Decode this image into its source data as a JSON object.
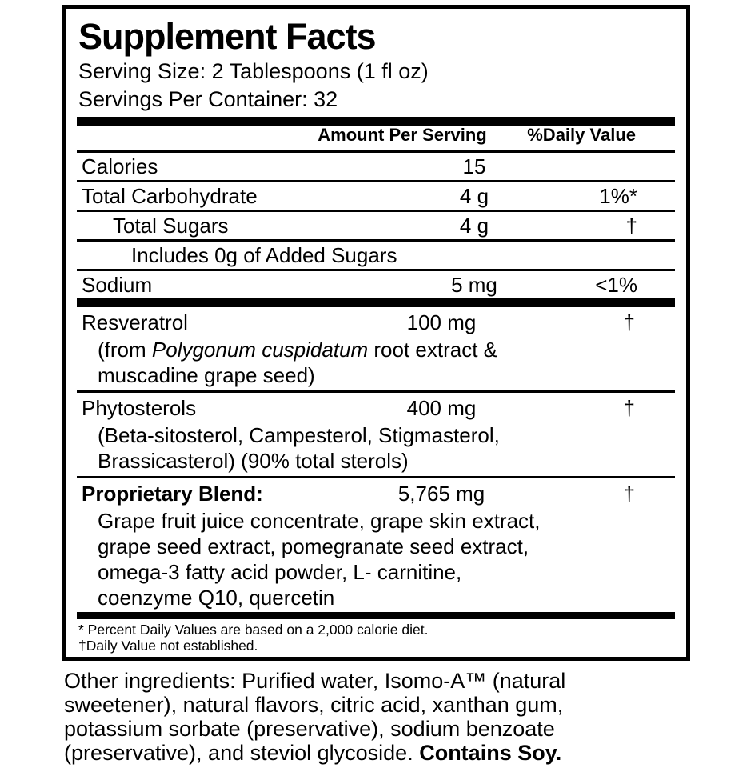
{
  "colors": {
    "text": "#000000",
    "background": "#ffffff"
  },
  "panel": {
    "title": "Supplement Facts",
    "serving_size": "Serving Size: 2 Tablespoons (1 fl oz)",
    "servings_per_container": "Servings Per Container: 32",
    "header": {
      "amount": "Amount Per Serving",
      "daily_value": "%Daily Value"
    },
    "nutrients": [
      {
        "name": "Calories",
        "amount": "15",
        "dv": ""
      },
      {
        "name": "Total Carbohydrate",
        "amount": "4 g",
        "dv": "1%*"
      },
      {
        "name": "Total Sugars",
        "amount": "4 g",
        "dv": "†"
      },
      {
        "name": "Includes 0g of Added Sugars",
        "amount": "",
        "dv": ""
      },
      {
        "name": "Sodium",
        "amount": "5 mg",
        "dv": "<1%"
      }
    ],
    "ingredients": [
      {
        "name": "Resveratrol",
        "amount": "100 mg",
        "dv": "†",
        "desc_prefix": "(from ",
        "desc_italic": "Polygonum cuspidatum",
        "desc_suffix": " root extract &",
        "desc_line2": "muscadine grape seed)"
      },
      {
        "name": "Phytosterols",
        "amount": "400 mg",
        "dv": "†",
        "desc_line1": "(Beta-sitosterol, Campesterol, Stigmasterol,",
        "desc_line2": "Brassicasterol) (90% total sterols)"
      },
      {
        "name": "Proprietary Blend:",
        "amount": "5,765 mg",
        "dv": "†",
        "desc_line1": "Grape fruit juice concentrate, grape skin extract,",
        "desc_line2": "grape seed extract, pomegranate seed extract,",
        "desc_line3": "omega-3 fatty acid powder, L- carnitine,",
        "desc_line4": "coenzyme Q10, quercetin"
      }
    ],
    "footnotes": [
      "* Percent Daily Values are based on a 2,000 calorie diet.",
      "†Daily Value not established."
    ]
  },
  "other_ingredients": {
    "line1": "Other ingredients: Purified water, Isomo-A™ (natural",
    "line2": "sweetener), natural flavors, citric acid, xanthan gum,",
    "line3": "potassium sorbate (preservative), sodium benzoate",
    "line4_prefix": "(preservative), and steviol glycoside. ",
    "line4_bold": "Contains Soy."
  }
}
